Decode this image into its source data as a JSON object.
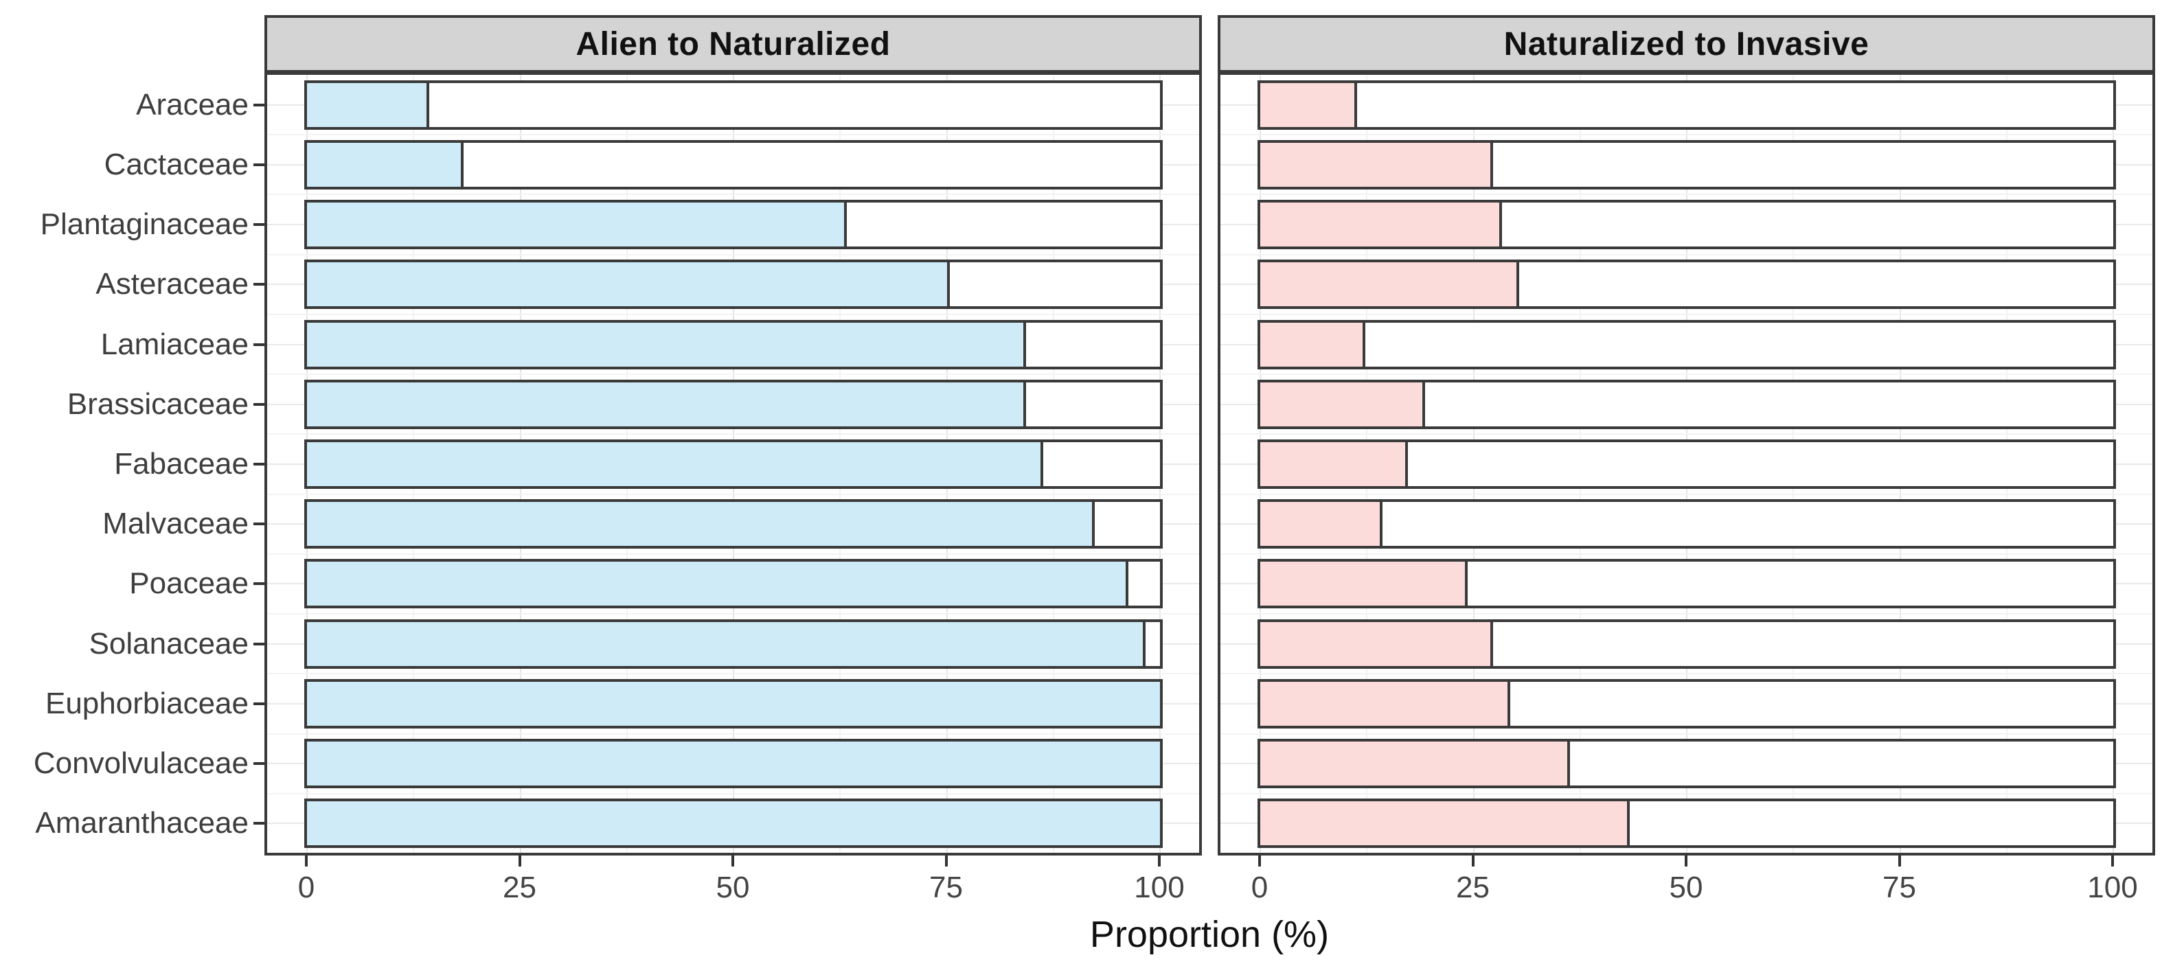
{
  "chart_data": {
    "type": "bar",
    "orientation": "horizontal",
    "facets": [
      "Alien to Naturalized",
      "Naturalized to Invasive"
    ],
    "categories": [
      "Araceae",
      "Cactaceae",
      "Plantaginaceae",
      "Asteraceae",
      "Lamiaceae",
      "Brassicaceae",
      "Fabaceae",
      "Malvaceae",
      "Poaceae",
      "Solanaceae",
      "Euphorbiaceae",
      "Convolvulaceae",
      "Amaranthaceae"
    ],
    "series": [
      {
        "name": "Alien to Naturalized",
        "color": "#CEEBF7",
        "values": [
          14,
          18,
          63,
          75,
          84,
          84,
          86,
          92,
          96,
          98,
          100,
          100,
          100
        ]
      },
      {
        "name": "Naturalized to Invasive",
        "color": "#FCDCDA",
        "values": [
          11,
          27,
          28,
          30,
          12,
          19,
          17,
          14,
          24,
          27,
          29,
          36,
          43
        ]
      }
    ],
    "xlabel": "Proportion (%)",
    "xlim": [
      0,
      100
    ],
    "x_ticks": [
      "0",
      "25",
      "50",
      "75",
      "100"
    ],
    "x_tick_values": [
      0,
      25,
      50,
      75,
      100
    ],
    "x_minor_ticks": [
      12.5,
      37.5,
      62.5,
      87.5
    ],
    "grid": "major and minor, light gray, behind bars",
    "legend": "none",
    "bar_track_color": "#FFFFFF",
    "bar_border_color": "#3A3A3A",
    "strip_background": "#D4D4D4",
    "gridline_major_color": "#E5E5E5",
    "gridline_minor_color": "#F3F3F3",
    "axis_text_color": "#3E3E3E"
  }
}
